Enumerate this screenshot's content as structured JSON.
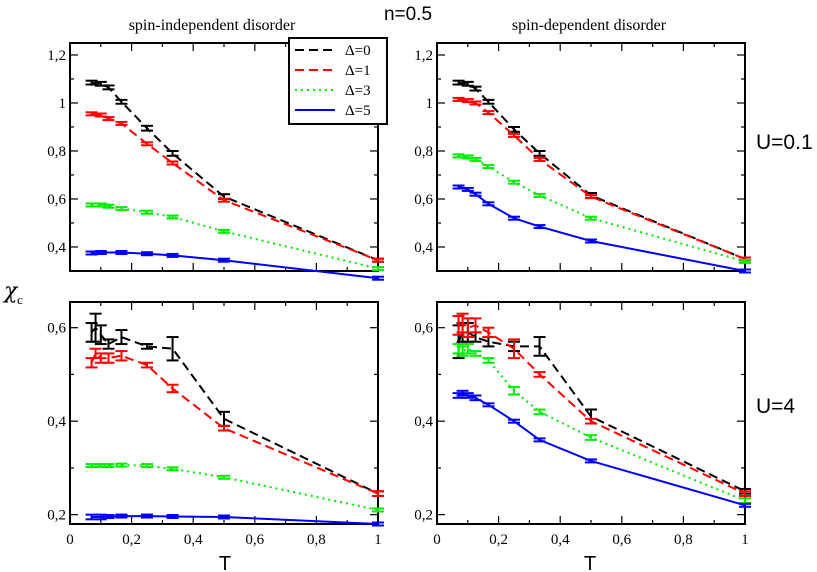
{
  "figure": {
    "title": "n=0.5",
    "col_titles": [
      "spin-independent disorder",
      "spin-dependent disorder"
    ],
    "row_labels": [
      "U=0.1",
      "U=4"
    ],
    "ylabel": "χ",
    "ylabel_sub": "c",
    "xlabel": "T"
  },
  "legend": {
    "placement": "top-left panel, upper right",
    "entries": [
      {
        "label": "Δ=0",
        "color": "#000000",
        "dash": "dashed"
      },
      {
        "label": "Δ=1",
        "color": "#ff0000",
        "dash": "dashed"
      },
      {
        "label": "Δ=3",
        "color": "#00ee00",
        "dash": "dotted"
      },
      {
        "label": "Δ=5",
        "color": "#0000ff",
        "dash": "solid"
      }
    ]
  },
  "chart_data": [
    {
      "type": "line",
      "panel": "top-left",
      "xlim": [
        0,
        1
      ],
      "ylim": [
        0.3,
        1.25
      ],
      "xticks": [
        0,
        0.2,
        0.4,
        0.6,
        0.8,
        1
      ],
      "xticklabels": [],
      "yticks": [
        0.4,
        0.6,
        0.8,
        1.0,
        1.2
      ],
      "yticklabels": [
        "0,4",
        "0,6",
        "0,8",
        "1",
        "1,2"
      ],
      "series": [
        {
          "name": "Δ=0",
          "x": [
            0.07,
            0.1,
            0.125,
            0.167,
            0.25,
            0.333,
            0.5,
            1
          ],
          "y": [
            1.085,
            1.08,
            1.065,
            1.005,
            0.895,
            0.79,
            0.61,
            0.345
          ],
          "err": [
            0.008,
            0.008,
            0.008,
            0.008,
            0.01,
            0.01,
            0.01,
            0.005
          ]
        },
        {
          "name": "Δ=1",
          "x": [
            0.07,
            0.1,
            0.125,
            0.167,
            0.25,
            0.333,
            0.5,
            1
          ],
          "y": [
            0.955,
            0.95,
            0.935,
            0.915,
            0.83,
            0.75,
            0.595,
            0.345
          ],
          "err": [
            0.005,
            0.005,
            0.005,
            0.005,
            0.005,
            0.005,
            0.005,
            0.005
          ]
        },
        {
          "name": "Δ=3",
          "x": [
            0.07,
            0.1,
            0.125,
            0.167,
            0.25,
            0.333,
            0.5,
            1
          ],
          "y": [
            0.575,
            0.575,
            0.57,
            0.56,
            0.545,
            0.525,
            0.465,
            0.31
          ],
          "err": [
            0.003,
            0.003,
            0.003,
            0.003,
            0.003,
            0.003,
            0.003,
            0.003
          ]
        },
        {
          "name": "Δ=5",
          "x": [
            0.07,
            0.1,
            0.167,
            0.25,
            0.333,
            0.5,
            1
          ],
          "y": [
            0.375,
            0.377,
            0.377,
            0.372,
            0.365,
            0.345,
            0.27
          ],
          "err": [
            0,
            0,
            0,
            0,
            0,
            0,
            0
          ]
        }
      ]
    },
    {
      "type": "line",
      "panel": "top-right",
      "xlim": [
        0,
        1
      ],
      "ylim": [
        0.3,
        1.25
      ],
      "xticks": [
        0,
        0.2,
        0.4,
        0.6,
        0.8,
        1
      ],
      "xticklabels": [],
      "yticks": [
        0.4,
        0.6,
        0.8,
        1.0,
        1.2
      ],
      "yticklabels": [
        "0,4",
        "0,6",
        "0,8",
        "1",
        "1,2"
      ],
      "series": [
        {
          "name": "Δ=0",
          "x": [
            0.07,
            0.1,
            0.125,
            0.167,
            0.25,
            0.333,
            0.5,
            1
          ],
          "y": [
            1.085,
            1.08,
            1.06,
            1.005,
            0.89,
            0.79,
            0.615,
            0.35
          ],
          "err": [
            0.008,
            0.008,
            0.008,
            0.008,
            0.01,
            0.01,
            0.01,
            0.005
          ]
        },
        {
          "name": "Δ=1",
          "x": [
            0.07,
            0.1,
            0.125,
            0.167,
            0.25,
            0.333,
            0.5,
            1
          ],
          "y": [
            1.015,
            1.01,
            1.0,
            0.96,
            0.865,
            0.765,
            0.61,
            0.35
          ],
          "err": [
            0.005,
            0.005,
            0.005,
            0.005,
            0.005,
            0.005,
            0.005,
            0.005
          ]
        },
        {
          "name": "Δ=3",
          "x": [
            0.07,
            0.1,
            0.125,
            0.167,
            0.25,
            0.333,
            0.5,
            1
          ],
          "y": [
            0.78,
            0.775,
            0.765,
            0.735,
            0.67,
            0.615,
            0.52,
            0.34
          ],
          "err": [
            0.005,
            0.005,
            0.005,
            0.005,
            0.005,
            0.005,
            0.005,
            0.005
          ]
        },
        {
          "name": "Δ=5",
          "x": [
            0.07,
            0.1,
            0.125,
            0.167,
            0.25,
            0.333,
            0.5,
            1
          ],
          "y": [
            0.65,
            0.64,
            0.62,
            0.58,
            0.52,
            0.485,
            0.425,
            0.3
          ],
          "err": [
            0.005,
            0.005,
            0.005,
            0.005,
            0.005,
            0.005,
            0.005,
            0.005
          ]
        }
      ]
    },
    {
      "type": "line",
      "panel": "bottom-left",
      "xlim": [
        0,
        1
      ],
      "ylim": [
        0.18,
        0.655
      ],
      "xticks": [
        0,
        0.2,
        0.4,
        0.6,
        0.8,
        1
      ],
      "xticklabels": [
        "0",
        "0,2",
        "0,4",
        "0,6",
        "0,8",
        "1"
      ],
      "yticks": [
        0.2,
        0.4,
        0.6
      ],
      "yticklabels": [
        "0,2",
        "0,4",
        "0,6"
      ],
      "series": [
        {
          "name": "Δ=0",
          "x": [
            0.07,
            0.083,
            0.1,
            0.125,
            0.167,
            0.25,
            0.333,
            0.5,
            1
          ],
          "y": [
            0.59,
            0.6,
            0.585,
            0.565,
            0.58,
            0.56,
            0.555,
            0.405,
            0.245
          ],
          "err": [
            0.02,
            0.03,
            0.02,
            0.01,
            0.015,
            0.005,
            0.025,
            0.015,
            0.005
          ]
        },
        {
          "name": "Δ=1",
          "x": [
            0.07,
            0.083,
            0.1,
            0.125,
            0.167,
            0.25,
            0.333,
            0.5,
            1
          ],
          "y": [
            0.525,
            0.545,
            0.535,
            0.535,
            0.54,
            0.52,
            0.47,
            0.385,
            0.245
          ],
          "err": [
            0.01,
            0.01,
            0.01,
            0.01,
            0.01,
            0.005,
            0.008,
            0.005,
            0.005
          ]
        },
        {
          "name": "Δ=3",
          "x": [
            0.07,
            0.1,
            0.125,
            0.167,
            0.25,
            0.333,
            0.5,
            1
          ],
          "y": [
            0.305,
            0.305,
            0.305,
            0.306,
            0.305,
            0.298,
            0.28,
            0.21
          ],
          "err": [
            0.003,
            0.003,
            0.003,
            0.003,
            0.003,
            0.003,
            0.003,
            0.003
          ]
        },
        {
          "name": "Δ=5",
          "x": [
            0.07,
            0.1,
            0.125,
            0.167,
            0.25,
            0.333,
            0.5,
            1
          ],
          "y": [
            0.195,
            0.195,
            0.196,
            0.197,
            0.197,
            0.196,
            0.195,
            0.18
          ],
          "err": [
            0.005,
            0.005,
            0.003,
            0.003,
            0.003,
            0.003,
            0.003,
            0.003
          ]
        }
      ]
    },
    {
      "type": "line",
      "panel": "bottom-right",
      "xlim": [
        0,
        1
      ],
      "ylim": [
        0.18,
        0.655
      ],
      "xticks": [
        0,
        0.2,
        0.4,
        0.6,
        0.8,
        1
      ],
      "xticklabels": [
        "0",
        "0,2",
        "0,4",
        "0,6",
        "0,8",
        "1"
      ],
      "yticks": [
        0.2,
        0.4,
        0.6
      ],
      "yticklabels": [
        "0,2",
        "0,4",
        "0,6"
      ],
      "series": [
        {
          "name": "Δ=0",
          "x": [
            0.07,
            0.083,
            0.1,
            0.125,
            0.167,
            0.25,
            0.333,
            0.5,
            1
          ],
          "y": [
            0.57,
            0.59,
            0.59,
            0.58,
            0.57,
            0.56,
            0.56,
            0.41,
            0.25
          ],
          "err": [
            0.035,
            0.02,
            0.02,
            0.01,
            0.01,
            0.01,
            0.02,
            0.015,
            0.005
          ]
        },
        {
          "name": "Δ=1",
          "x": [
            0.07,
            0.083,
            0.1,
            0.125,
            0.167,
            0.25,
            0.333,
            0.5,
            1
          ],
          "y": [
            0.605,
            0.61,
            0.6,
            0.605,
            0.59,
            0.555,
            0.5,
            0.4,
            0.245
          ],
          "err": [
            0.02,
            0.02,
            0.02,
            0.015,
            0.01,
            0.02,
            0.005,
            0.005,
            0.005
          ]
        },
        {
          "name": "Δ=3",
          "x": [
            0.07,
            0.083,
            0.1,
            0.125,
            0.167,
            0.25,
            0.333,
            0.5,
            1
          ],
          "y": [
            0.555,
            0.55,
            0.555,
            0.545,
            0.53,
            0.465,
            0.42,
            0.365,
            0.23
          ],
          "err": [
            0.01,
            0.01,
            0.01,
            0.005,
            0.005,
            0.008,
            0.005,
            0.005,
            0.005
          ]
        },
        {
          "name": "Δ=5",
          "x": [
            0.07,
            0.083,
            0.1,
            0.125,
            0.167,
            0.25,
            0.333,
            0.5,
            1
          ],
          "y": [
            0.455,
            0.46,
            0.455,
            0.45,
            0.435,
            0.4,
            0.36,
            0.315,
            0.22
          ],
          "err": [
            0.005,
            0.005,
            0.005,
            0.005,
            0.003,
            0.003,
            0.003,
            0.003,
            0.003
          ]
        }
      ]
    }
  ]
}
